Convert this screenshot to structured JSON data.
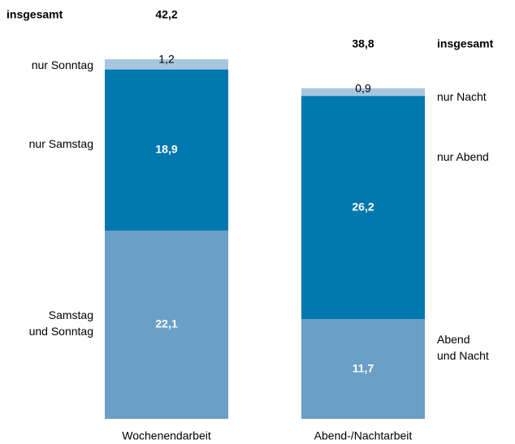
{
  "chart_data": {
    "type": "stacked-bar",
    "categories": [
      "Wochenendarbeit",
      "Abend-/Nachtarbeit"
    ],
    "total_name": "insgesamt",
    "totals": [
      42.2,
      38.8
    ],
    "total_labels": [
      "42,2",
      "38,8"
    ],
    "ylim": [
      0,
      42.2
    ],
    "bars": [
      {
        "segments": [
          {
            "name": "Samstag\nund Sonntag",
            "value": 22.1,
            "value_label": "22,1",
            "color": "#6a9fc6"
          },
          {
            "name": "nur Samstag",
            "value": 18.9,
            "value_label": "18,9",
            "color": "#0077ae"
          },
          {
            "name": "nur Sonntag",
            "value": 1.2,
            "value_label": "1,2",
            "color": "#a8c6df"
          }
        ]
      },
      {
        "segments": [
          {
            "name": "Abend\nund Nacht",
            "value": 11.7,
            "value_label": "11,7",
            "color": "#6a9fc6"
          },
          {
            "name": "nur Abend",
            "value": 26.2,
            "value_label": "26,2",
            "color": "#0077ae"
          },
          {
            "name": "nur Nacht",
            "value": 0.9,
            "value_label": "0,9",
            "color": "#a8c6df"
          }
        ]
      }
    ]
  }
}
